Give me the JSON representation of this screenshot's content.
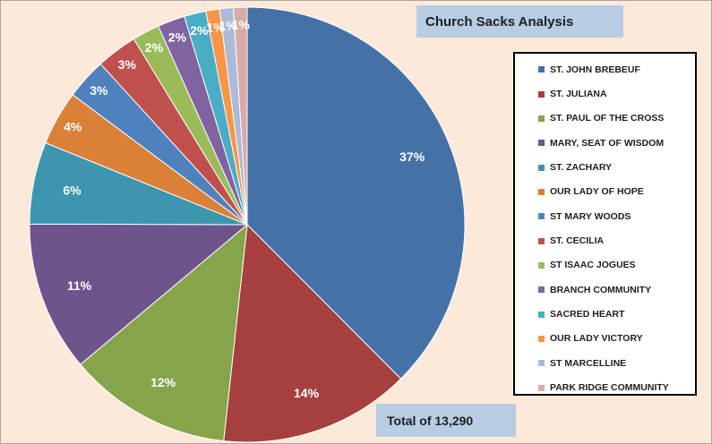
{
  "chart_data": {
    "type": "pie",
    "title": "Church Sacks Analysis",
    "annotation": "Total of 13,290",
    "legend_position": "right",
    "slices": [
      {
        "label": "ST. JOHN BREBEUF",
        "percent": 37,
        "display": "37%",
        "color": "#4472a8"
      },
      {
        "label": "ST. JULIANA",
        "percent": 14,
        "display": "14%",
        "color": "#a5403e"
      },
      {
        "label": "ST. PAUL OF THE CROSS",
        "percent": 12,
        "display": "12%",
        "color": "#86a44a"
      },
      {
        "label": "MARY, SEAT OF WISDOM",
        "percent": 11,
        "display": "11%",
        "color": "#6e548d"
      },
      {
        "label": "ST. ZACHARY",
        "percent": 6,
        "display": "6%",
        "color": "#3d96ae"
      },
      {
        "label": "OUR LADY OF HOPE",
        "percent": 4,
        "display": "4%",
        "color": "#da8137"
      },
      {
        "label": "ST MARY WOODS",
        "percent": 3,
        "display": "3%",
        "color": "#4f81bd"
      },
      {
        "label": "ST. CECILIA",
        "percent": 3,
        "display": "3%",
        "color": "#c0504d"
      },
      {
        "label": "ST ISAAC JOGUES",
        "percent": 2,
        "display": "2%",
        "color": "#9bbb59"
      },
      {
        "label": "BRANCH COMMUNITY",
        "percent": 2,
        "display": "2%",
        "color": "#8064a2"
      },
      {
        "label": "SACRED HEART",
        "percent": 1.6,
        "display": "2%",
        "color": "#4bacc6"
      },
      {
        "label": "OUR LADY VICTORY",
        "percent": 1,
        "display": "1%",
        "color": "#f79646"
      },
      {
        "label": "ST MARCELLINE",
        "percent": 1,
        "display": "1%",
        "color": "#aabad7"
      },
      {
        "label": "PARK RIDGE COMMUNITY",
        "percent": 1,
        "display": "1%",
        "color": "#d9a9a8"
      }
    ]
  }
}
